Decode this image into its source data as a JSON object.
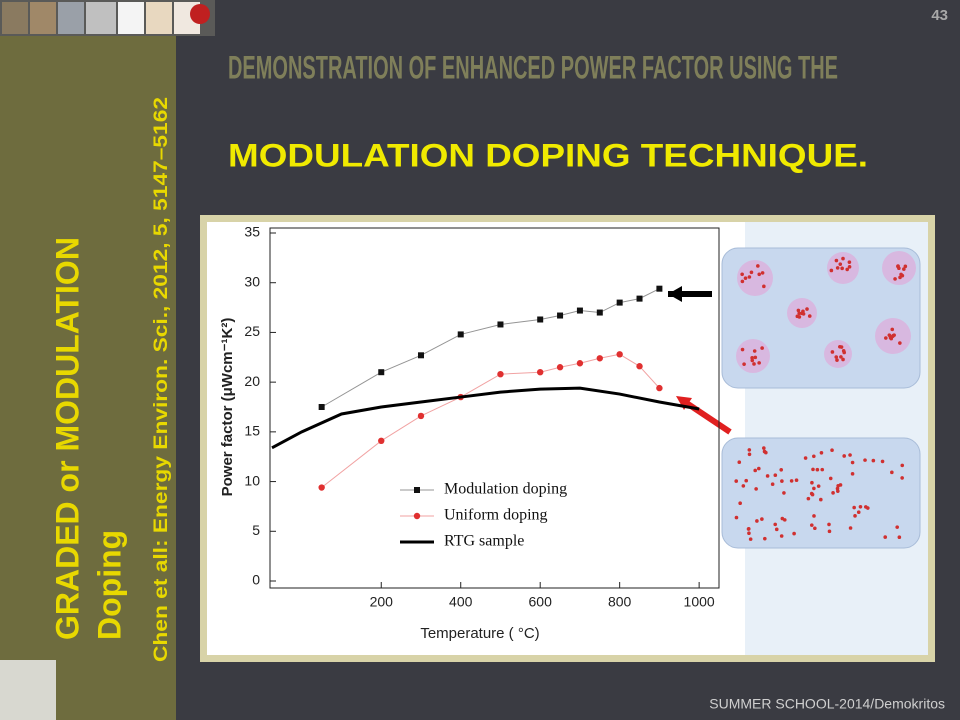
{
  "slide_number": "43",
  "title_line1": "DEMONSTRATION OF ENHANCED POWER FACTOR USING THE",
  "title_line2": "MODULATION DOPING TECHNIQUE.",
  "side_title_line1": "GRADED or MODULATION",
  "side_title_line2": "Doping",
  "citation": "Chen et all: Energy Environ. Sci., 2012, 5, 5147–5162",
  "footer": "SUMMER SCHOOL-2014/Demokritos",
  "chart_data": {
    "type": "line",
    "xlabel": "Temperature ( °C)",
    "ylabel": "Power factor (μWcm⁻¹K²)",
    "xlim": [
      -80,
      1050
    ],
    "ylim": [
      0,
      35
    ],
    "xticks": [
      200,
      400,
      600,
      800,
      1000
    ],
    "yticks": [
      0,
      5,
      10,
      15,
      20,
      25,
      30,
      35
    ],
    "legend": "lower center",
    "series": [
      {
        "name": "Modulation doping",
        "color": "#111111",
        "marker": "square",
        "x": [
          50,
          200,
          300,
          400,
          500,
          600,
          650,
          700,
          750,
          800,
          850,
          900
        ],
        "values": [
          17.5,
          21,
          22.7,
          24.8,
          25.8,
          26.3,
          26.7,
          27.2,
          27.0,
          28.0,
          28.4,
          29.4
        ]
      },
      {
        "name": "Uniform doping",
        "color": "#e03030",
        "marker": "circle",
        "x": [
          50,
          200,
          300,
          400,
          500,
          600,
          650,
          700,
          750,
          800,
          850,
          900
        ],
        "values": [
          9.4,
          14.1,
          16.6,
          18.5,
          20.8,
          21.0,
          21.5,
          21.9,
          22.4,
          22.8,
          21.6,
          19.4
        ]
      },
      {
        "name": "RTG sample",
        "color": "#000000",
        "marker": "none",
        "x": [
          -75,
          0,
          100,
          200,
          300,
          400,
          500,
          600,
          700,
          800,
          900,
          1000
        ],
        "values": [
          13.4,
          15,
          16.8,
          17.5,
          18,
          18.5,
          19,
          19.3,
          19.4,
          18.8,
          18,
          17.3
        ]
      }
    ]
  }
}
